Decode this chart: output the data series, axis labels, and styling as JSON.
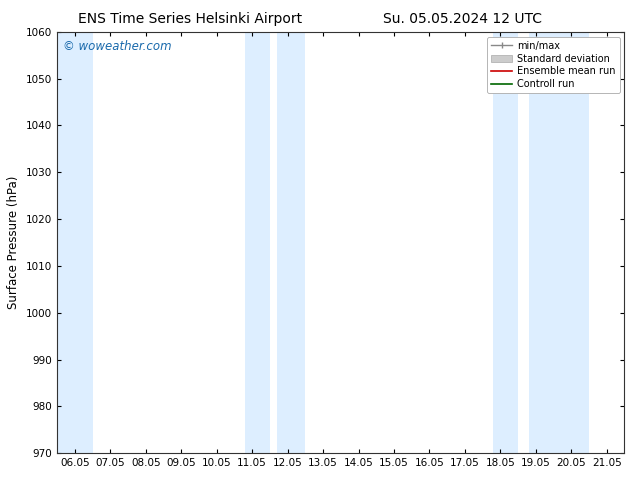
{
  "title_left": "ENS Time Series Helsinki Airport",
  "title_right": "Su. 05.05.2024 12 UTC",
  "ylabel": "Surface Pressure (hPa)",
  "ylim": [
    970,
    1060
  ],
  "yticks": [
    970,
    980,
    990,
    1000,
    1010,
    1020,
    1030,
    1040,
    1050,
    1060
  ],
  "xtick_labels": [
    "06.05",
    "07.05",
    "08.05",
    "09.05",
    "10.05",
    "11.05",
    "12.05",
    "13.05",
    "14.05",
    "15.05",
    "16.05",
    "17.05",
    "18.05",
    "19.05",
    "20.05",
    "21.05"
  ],
  "xtick_positions": [
    0,
    1,
    2,
    3,
    4,
    5,
    6,
    7,
    8,
    9,
    10,
    11,
    12,
    13,
    14,
    15
  ],
  "xlim": [
    -0.5,
    15.5
  ],
  "shaded_bands": [
    {
      "x_start": -0.5,
      "x_end": 0.5
    },
    {
      "x_start": 4.8,
      "x_end": 5.5
    },
    {
      "x_start": 5.7,
      "x_end": 6.5
    },
    {
      "x_start": 11.8,
      "x_end": 12.5
    },
    {
      "x_start": 12.8,
      "x_end": 14.5
    }
  ],
  "shade_color": "#ddeeff",
  "background_color": "#ffffff",
  "watermark_text": "© woweather.com",
  "watermark_color": "#1a6aac",
  "title_fontsize": 10,
  "tick_fontsize": 7.5,
  "ylabel_fontsize": 8.5
}
